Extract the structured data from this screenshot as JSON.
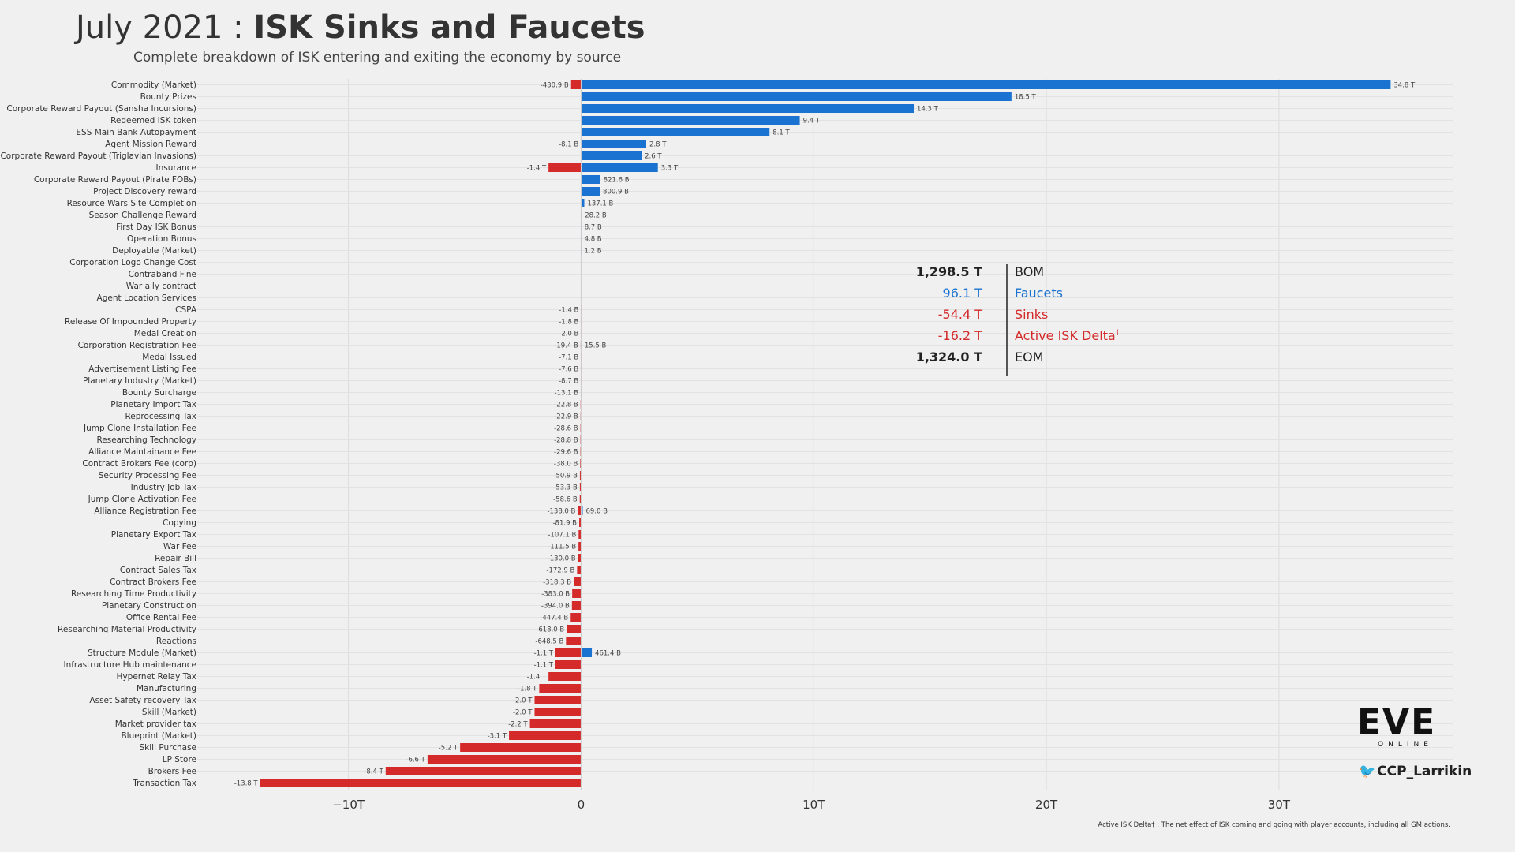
{
  "title": {
    "prefix": "July 2021 : ",
    "main": "ISK Sinks and Faucets"
  },
  "subtitle": "Complete breakdown of ISK entering and exiting the economy by source",
  "colors": {
    "faucet": "#1a73d0",
    "sink": "#d42a2a",
    "bom": "#222222",
    "delta": "#d42a2a"
  },
  "summary": [
    {
      "value": "1,298.5 T",
      "label": "BOM",
      "color": "#222222",
      "bold": true
    },
    {
      "value": "96.1 T",
      "label": "Faucets",
      "color": "#1a73d0",
      "bold": false
    },
    {
      "value": "-54.4 T",
      "label": "Sinks",
      "color": "#d42a2a",
      "bold": false
    },
    {
      "value": "-16.2 T",
      "label": "Active ISK Delta",
      "sup": "†",
      "color": "#d42a2a",
      "bold": false
    },
    {
      "value": "1,324.0 T",
      "label": "EOM",
      "color": "#222222",
      "bold": true
    }
  ],
  "logo": {
    "main": "EVE",
    "sub": "ONLINE"
  },
  "twitter": {
    "icon": "twitter-bird-icon",
    "handle": "CCP_Larrikin"
  },
  "footnote": "Active ISK Delta† : The net effect of ISK coming and going with player accounts, including all GM actions.",
  "chart_data": {
    "type": "bar",
    "orientation": "horizontal",
    "unit": "ISK (T = trillion, B = billion)",
    "xlim": [
      -16.5,
      37.5
    ],
    "xticks": [
      {
        "v": -10,
        "label": "−10T"
      },
      {
        "v": 0,
        "label": "0"
      },
      {
        "v": 10,
        "label": "10T"
      },
      {
        "v": 20,
        "label": "20T"
      },
      {
        "v": 30,
        "label": "30T"
      }
    ],
    "grid": true,
    "rows": [
      {
        "name": "Commodity (Market)",
        "sink": -0.4309,
        "sinkLabel": "-430.9 B",
        "faucet": 34.8,
        "faucetLabel": "34.8 T"
      },
      {
        "name": "Bounty Prizes",
        "faucet": 18.5,
        "faucetLabel": "18.5 T"
      },
      {
        "name": "Corporate Reward Payout (Sansha Incursions)",
        "faucet": 14.3,
        "faucetLabel": "14.3 T"
      },
      {
        "name": "Redeemed ISK token",
        "faucet": 9.4,
        "faucetLabel": "9.4 T"
      },
      {
        "name": "ESS Main Bank Autopayment",
        "faucet": 8.1,
        "faucetLabel": "8.1 T"
      },
      {
        "name": "Agent Mission Reward",
        "sink": -0.0081,
        "sinkLabel": "-8.1 B",
        "faucet": 2.8,
        "faucetLabel": "2.8 T"
      },
      {
        "name": "Corporate Reward Payout (Triglavian Invasions)",
        "faucet": 2.6,
        "faucetLabel": "2.6 T"
      },
      {
        "name": "Insurance",
        "sink": -1.4,
        "sinkLabel": "-1.4 T",
        "faucet": 3.3,
        "faucetLabel": "3.3 T"
      },
      {
        "name": "Corporate Reward Payout (Pirate FOBs)",
        "faucet": 0.8216,
        "faucetLabel": "821.6 B"
      },
      {
        "name": "Project Discovery reward",
        "faucet": 0.8009,
        "faucetLabel": "800.9 B"
      },
      {
        "name": "Resource Wars Site Completion",
        "faucet": 0.1371,
        "faucetLabel": "137.1 B"
      },
      {
        "name": "Season Challenge Reward",
        "faucet": 0.0282,
        "faucetLabel": "28.2 B"
      },
      {
        "name": "First Day ISK Bonus",
        "faucet": 0.0087,
        "faucetLabel": "8.7 B"
      },
      {
        "name": "Operation Bonus",
        "faucet": 0.0048,
        "faucetLabel": "4.8 B"
      },
      {
        "name": "Deployable (Market)",
        "faucet": 0.0012,
        "faucetLabel": "1.2 B"
      },
      {
        "name": "Corporation Logo Change Cost"
      },
      {
        "name": "Contraband Fine"
      },
      {
        "name": "War ally contract"
      },
      {
        "name": "Agent Location Services"
      },
      {
        "name": "CSPA",
        "sink": -0.0014,
        "sinkLabel": "-1.4 B"
      },
      {
        "name": "Release Of Impounded Property",
        "sink": -0.0018,
        "sinkLabel": "-1.8 B"
      },
      {
        "name": "Medal Creation",
        "sink": -0.002,
        "sinkLabel": "-2.0 B"
      },
      {
        "name": "Corporation Registration Fee",
        "sink": -0.0194,
        "sinkLabel": "-19.4 B",
        "faucet": 0.0155,
        "faucetLabel": "15.5 B"
      },
      {
        "name": "Medal Issued",
        "sink": -0.0071,
        "sinkLabel": "-7.1 B"
      },
      {
        "name": "Advertisement Listing Fee",
        "sink": -0.0076,
        "sinkLabel": "-7.6 B"
      },
      {
        "name": "Planetary Industry (Market)",
        "sink": -0.0087,
        "sinkLabel": "-8.7 B"
      },
      {
        "name": "Bounty Surcharge",
        "sink": -0.0131,
        "sinkLabel": "-13.1 B"
      },
      {
        "name": "Planetary Import Tax",
        "sink": -0.0228,
        "sinkLabel": "-22.8 B"
      },
      {
        "name": "Reprocessing Tax",
        "sink": -0.0229,
        "sinkLabel": "-22.9 B"
      },
      {
        "name": "Jump Clone Installation Fee",
        "sink": -0.0286,
        "sinkLabel": "-28.6 B"
      },
      {
        "name": "Researching Technology",
        "sink": -0.0288,
        "sinkLabel": "-28.8 B"
      },
      {
        "name": "Alliance Maintainance Fee",
        "sink": -0.0296,
        "sinkLabel": "-29.6 B"
      },
      {
        "name": "Contract Brokers Fee (corp)",
        "sink": -0.038,
        "sinkLabel": "-38.0 B"
      },
      {
        "name": "Security Processing Fee",
        "sink": -0.0509,
        "sinkLabel": "-50.9 B"
      },
      {
        "name": "Industry Job Tax",
        "sink": -0.0533,
        "sinkLabel": "-53.3 B"
      },
      {
        "name": "Jump Clone Activation Fee",
        "sink": -0.0586,
        "sinkLabel": "-58.6 B"
      },
      {
        "name": "Alliance Registration Fee",
        "sink": -0.138,
        "sinkLabel": "-138.0 B",
        "faucet": 0.069,
        "faucetLabel": "69.0 B"
      },
      {
        "name": "Copying",
        "sink": -0.0819,
        "sinkLabel": "-81.9 B"
      },
      {
        "name": "Planetary Export Tax",
        "sink": -0.1071,
        "sinkLabel": "-107.1 B"
      },
      {
        "name": "War Fee",
        "sink": -0.1115,
        "sinkLabel": "-111.5 B"
      },
      {
        "name": "Repair Bill",
        "sink": -0.13,
        "sinkLabel": "-130.0 B"
      },
      {
        "name": "Contract Sales Tax",
        "sink": -0.1729,
        "sinkLabel": "-172.9 B"
      },
      {
        "name": "Contract Brokers Fee",
        "sink": -0.3183,
        "sinkLabel": "-318.3 B"
      },
      {
        "name": "Researching Time Productivity",
        "sink": -0.383,
        "sinkLabel": "-383.0 B"
      },
      {
        "name": "Planetary Construction",
        "sink": -0.394,
        "sinkLabel": "-394.0 B"
      },
      {
        "name": "Office Rental Fee",
        "sink": -0.4474,
        "sinkLabel": "-447.4 B"
      },
      {
        "name": "Researching Material Productivity",
        "sink": -0.618,
        "sinkLabel": "-618.0 B"
      },
      {
        "name": "Reactions",
        "sink": -0.6485,
        "sinkLabel": "-648.5 B"
      },
      {
        "name": "Structure Module (Market)",
        "sink": -1.1,
        "sinkLabel": "-1.1 T",
        "faucet": 0.4614,
        "faucetLabel": "461.4 B"
      },
      {
        "name": "Infrastructure Hub maintenance",
        "sink": -1.1,
        "sinkLabel": "-1.1 T"
      },
      {
        "name": "Hypernet Relay Tax",
        "sink": -1.4,
        "sinkLabel": "-1.4 T"
      },
      {
        "name": "Manufacturing",
        "sink": -1.8,
        "sinkLabel": "-1.8 T"
      },
      {
        "name": "Asset Safety recovery Tax",
        "sink": -2.0,
        "sinkLabel": "-2.0 T"
      },
      {
        "name": "Skill (Market)",
        "sink": -2.0,
        "sinkLabel": "-2.0 T"
      },
      {
        "name": "Market provider tax",
        "sink": -2.2,
        "sinkLabel": "-2.2 T"
      },
      {
        "name": "Blueprint (Market)",
        "sink": -3.1,
        "sinkLabel": "-3.1 T"
      },
      {
        "name": "Skill Purchase",
        "sink": -5.2,
        "sinkLabel": "-5.2 T"
      },
      {
        "name": "LP Store",
        "sink": -6.6,
        "sinkLabel": "-6.6 T"
      },
      {
        "name": "Brokers Fee",
        "sink": -8.4,
        "sinkLabel": "-8.4 T"
      },
      {
        "name": "Transaction Tax",
        "sink": -13.8,
        "sinkLabel": "-13.8 T"
      }
    ]
  }
}
